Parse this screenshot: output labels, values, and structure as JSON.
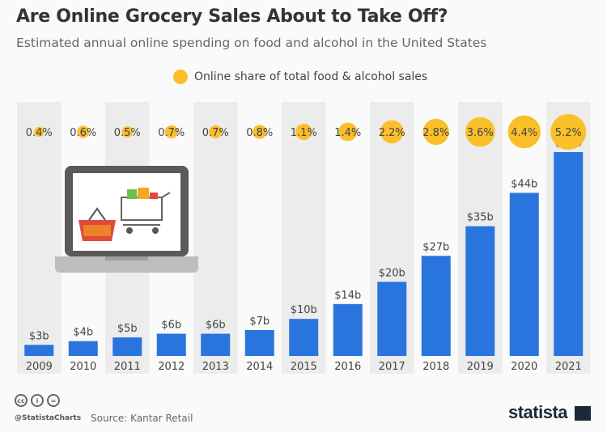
{
  "header": {
    "title": "Are Online Grocery Sales About to Take Off?",
    "subtitle": "Estimated annual online spending on food and alcohol in the United States"
  },
  "chart_data": {
    "type": "bar",
    "categories": [
      "2009",
      "2010",
      "2011",
      "2012",
      "2013",
      "2014",
      "2015",
      "2016",
      "2017",
      "2018",
      "2019",
      "2020",
      "2021"
    ],
    "values": [
      3,
      4,
      5,
      6,
      6,
      7,
      10,
      14,
      20,
      27,
      35,
      44,
      55
    ],
    "value_labels": [
      "$3b",
      "$4b",
      "$5b",
      "$6b",
      "$6b",
      "$7b",
      "$10b",
      "$14b",
      "$20b",
      "$27b",
      "$35b",
      "$44b",
      "$55b"
    ],
    "unit": "billion USD",
    "bubble_series": {
      "name": "Online share of total food & alcohol sales",
      "values": [
        0.4,
        0.6,
        0.5,
        0.7,
        0.7,
        0.8,
        1.1,
        1.4,
        2.2,
        2.8,
        3.6,
        4.4,
        5.2
      ],
      "labels": [
        "0.4%",
        "0.6%",
        "0.5%",
        "0.7%",
        "0.7%",
        "0.8%",
        "1.1%",
        "1.4%",
        "2.2%",
        "2.8%",
        "3.6%",
        "4.4%",
        "5.2%"
      ]
    },
    "legend_position": "top-center",
    "colors": {
      "bar": "#2a75dd",
      "bubble": "#fbbf2a",
      "stripe": "#ececec"
    }
  },
  "footer": {
    "handle": "@StatistaCharts",
    "source": "Source: Kantar Retail",
    "brand": "statista",
    "license_icons": [
      "cc",
      "by",
      "nd"
    ]
  }
}
